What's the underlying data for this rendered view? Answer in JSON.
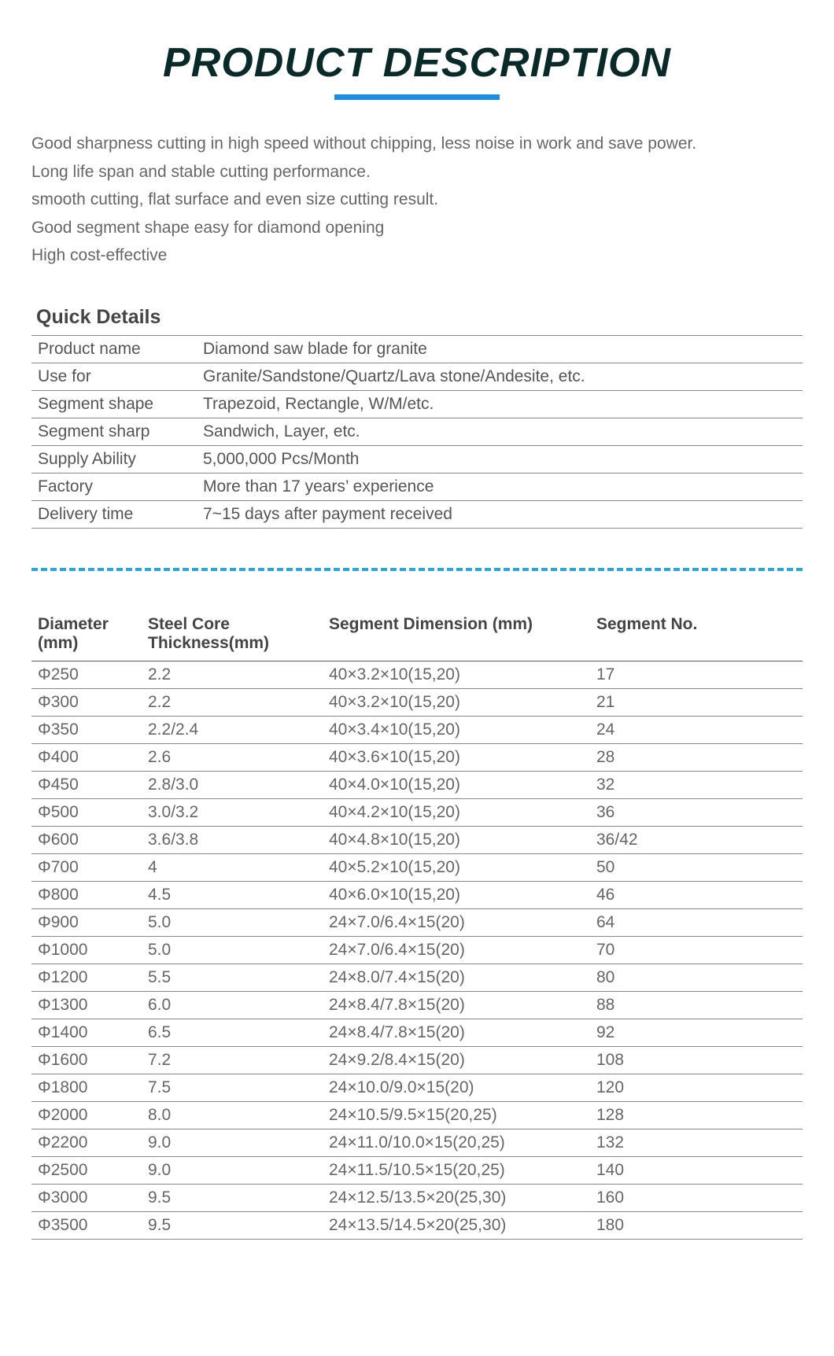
{
  "title": "PRODUCT DESCRIPTION",
  "underline_color": "#1a8ee6",
  "description_lines": [
    "Good sharpness cutting in high speed without chipping, less noise in work and save power.",
    "Long life span and stable cutting performance.",
    "smooth cutting, flat surface and even size cutting result.",
    "Good segment shape easy for diamond opening",
    "High cost-effective"
  ],
  "quick_details": {
    "heading": "Quick Details",
    "rows": [
      {
        "label": "Product name",
        "value": "Diamond saw blade for granite"
      },
      {
        "label": "Use for",
        "value": "Granite/Sandstone/Quartz/Lava stone/Andesite, etc."
      },
      {
        "label": "Segment shape",
        "value": "Trapezoid, Rectangle, W/M/etc."
      },
      {
        "label": "Segment sharp",
        "value": "Sandwich, Layer, etc."
      },
      {
        "label": "Supply Ability",
        "value": "5,000,000 Pcs/Month"
      },
      {
        "label": "Factory",
        "value": "More than 17 years’ experience"
      },
      {
        "label": "Delivery time",
        "value": "7~15 days after payment received"
      }
    ]
  },
  "separator_color": "#2aa8d8",
  "specs": {
    "columns": [
      "Diameter (mm)",
      "Steel Core Thickness(mm)",
      "Segment Dimension  (mm)",
      "Segment No."
    ],
    "rows": [
      {
        "dia": "Φ250",
        "thick": "2.2",
        "dim": "40×3.2×10(15,20)",
        "seg": "17"
      },
      {
        "dia": "Φ300",
        "thick": "2.2",
        "dim": "40×3.2×10(15,20)",
        "seg": "21"
      },
      {
        "dia": "Φ350",
        "thick": "2.2/2.4",
        "dim": "40×3.4×10(15,20)",
        "seg": "24"
      },
      {
        "dia": "Φ400",
        "thick": "2.6",
        "dim": "40×3.6×10(15,20)",
        "seg": "28"
      },
      {
        "dia": "Φ450",
        "thick": "2.8/3.0",
        "dim": "40×4.0×10(15,20)",
        "seg": "32"
      },
      {
        "dia": "Φ500",
        "thick": "3.0/3.2",
        "dim": "40×4.2×10(15,20)",
        "seg": "36"
      },
      {
        "dia": "Φ600",
        "thick": "3.6/3.8",
        "dim": "40×4.8×10(15,20)",
        "seg": "36/42"
      },
      {
        "dia": "Φ700",
        "thick": "4",
        "dim": "40×5.2×10(15,20)",
        "seg": "50"
      },
      {
        "dia": "Φ800",
        "thick": "4.5",
        "dim": "40×6.0×10(15,20)",
        "seg": "46"
      },
      {
        "dia": "Φ900",
        "thick": "5.0",
        "dim": "24×7.0/6.4×15(20)",
        "seg": "64"
      },
      {
        "dia": "Φ1000",
        "thick": "5.0",
        "dim": "24×7.0/6.4×15(20)",
        "seg": "70"
      },
      {
        "dia": "Φ1200",
        "thick": "5.5",
        "dim": "24×8.0/7.4×15(20)",
        "seg": "80"
      },
      {
        "dia": "Φ1300",
        "thick": "6.0",
        "dim": "24×8.4/7.8×15(20)",
        "seg": "88"
      },
      {
        "dia": "Φ1400",
        "thick": "6.5",
        "dim": "24×8.4/7.8×15(20)",
        "seg": "92"
      },
      {
        "dia": "Φ1600",
        "thick": "7.2",
        "dim": "24×9.2/8.4×15(20)",
        "seg": "108"
      },
      {
        "dia": "Φ1800",
        "thick": "7.5",
        "dim": "24×10.0/9.0×15(20)",
        "seg": "120"
      },
      {
        "dia": "Φ2000",
        "thick": "8.0",
        "dim": "24×10.5/9.5×15(20,25)",
        "seg": "128"
      },
      {
        "dia": "Φ2200",
        "thick": "9.0",
        "dim": "24×11.0/10.0×15(20,25)",
        "seg": "132"
      },
      {
        "dia": "Φ2500",
        "thick": "9.0",
        "dim": "24×11.5/10.5×15(20,25)",
        "seg": "140"
      },
      {
        "dia": "Φ3000",
        "thick": "9.5",
        "dim": "24×12.5/13.5×20(25,30)",
        "seg": "160"
      },
      {
        "dia": "Φ3500",
        "thick": "9.5",
        "dim": "24×13.5/14.5×20(25,30)",
        "seg": "180"
      }
    ]
  },
  "colors": {
    "title_text": "#0a2a2a",
    "body_text": "#555555",
    "muted_text": "#666666",
    "border": "#888888",
    "background": "#ffffff"
  },
  "fonts": {
    "title_size_pt": 39,
    "body_size_pt": 16,
    "section_title_size_pt": 19
  }
}
